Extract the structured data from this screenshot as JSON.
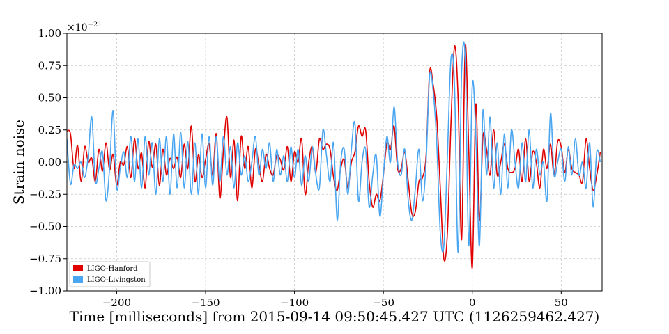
{
  "chart_data": {
    "type": "line",
    "xlabel": "Time [milliseconds] from 2015-09-14 09:50:45.427 UTC (1126259462.427)",
    "ylabel": "Strain noise",
    "y_offset_label": "×10",
    "y_offset_exponent": "−21",
    "xlim": [
      -228,
      73
    ],
    "ylim": [
      -1.0,
      1.0
    ],
    "x_ticks": [
      -200,
      -150,
      -100,
      -50,
      0,
      50
    ],
    "x_tick_labels": [
      "−200",
      "−150",
      "−100",
      "−50",
      "0",
      "50"
    ],
    "y_ticks": [
      -1.0,
      -0.75,
      -0.5,
      -0.25,
      0.0,
      0.25,
      0.5,
      0.75,
      1.0
    ],
    "y_tick_labels": [
      "−1.00",
      "−0.75",
      "−0.50",
      "−0.25",
      "0.00",
      "0.25",
      "0.50",
      "0.75",
      "1.00"
    ],
    "grid": true,
    "legend_position": "bottom-left",
    "series": [
      {
        "name": "LIGO-Hanford",
        "color": "#e00000",
        "points": [
          [
            -228,
            0.24
          ],
          [
            -226,
            0.22
          ],
          [
            -224,
            -0.05
          ],
          [
            -222,
            0.13
          ],
          [
            -220,
            -0.15
          ],
          [
            -218,
            0.12
          ],
          [
            -216,
            0.0
          ],
          [
            -214,
            0.03
          ],
          [
            -212,
            -0.15
          ],
          [
            -210,
            0.1
          ],
          [
            -208,
            -0.07
          ],
          [
            -206,
            0.15
          ],
          [
            -204,
            -0.06
          ],
          [
            -202,
            0.06
          ],
          [
            -200,
            -0.18
          ],
          [
            -198,
            0.0
          ],
          [
            -196,
            -0.02
          ],
          [
            -194,
            0.12
          ],
          [
            -192,
            -0.12
          ],
          [
            -190,
            0.18
          ],
          [
            -188,
            -0.05
          ],
          [
            -186,
            0.07
          ],
          [
            -184,
            -0.2
          ],
          [
            -182,
            0.16
          ],
          [
            -180,
            -0.04
          ],
          [
            -178,
            0.14
          ],
          [
            -176,
            -0.18
          ],
          [
            -174,
            0.1
          ],
          [
            -172,
            -0.1
          ],
          [
            -170,
            0.03
          ],
          [
            -168,
            -0.05
          ],
          [
            -166,
            0.04
          ],
          [
            -164,
            -0.12
          ],
          [
            -162,
            0.14
          ],
          [
            -160,
            -0.05
          ],
          [
            -158,
            0.28
          ],
          [
            -156,
            -0.15
          ],
          [
            -154,
            0.06
          ],
          [
            -152,
            -0.12
          ],
          [
            -150,
            0.02
          ],
          [
            -148,
            0.14
          ],
          [
            -146,
            -0.1
          ],
          [
            -144,
            0.22
          ],
          [
            -142,
            -0.28
          ],
          [
            -140,
            0.08
          ],
          [
            -138,
            0.35
          ],
          [
            -136,
            -0.12
          ],
          [
            -134,
            0.17
          ],
          [
            -132,
            -0.3
          ],
          [
            -130,
            0.2
          ],
          [
            -128,
            -0.05
          ],
          [
            -126,
            0.12
          ],
          [
            -124,
            -0.2
          ],
          [
            -122,
            0.1
          ],
          [
            -120,
            -0.02
          ],
          [
            -118,
            -0.15
          ],
          [
            -116,
            0.06
          ],
          [
            -114,
            -0.05
          ],
          [
            -112,
            -0.1
          ],
          [
            -110,
            0.05
          ],
          [
            -108,
            0.02
          ],
          [
            -106,
            -0.06
          ],
          [
            -104,
            0.12
          ],
          [
            -102,
            -0.15
          ],
          [
            -100,
            0.08
          ],
          [
            -98,
            0.0
          ],
          [
            -96,
            0.18
          ],
          [
            -94,
            -0.25
          ],
          [
            -92,
            0.0
          ],
          [
            -90,
            0.12
          ],
          [
            -88,
            -0.08
          ],
          [
            -86,
            0.18
          ],
          [
            -84,
            0.1
          ],
          [
            -82,
            0.14
          ],
          [
            -80,
            0.1
          ],
          [
            -78,
            -0.12
          ],
          [
            -76,
            -0.22
          ],
          [
            -74,
            -0.05
          ],
          [
            -72,
            0.02
          ],
          [
            -70,
            -0.2
          ],
          [
            -68,
            0.0
          ],
          [
            -66,
            0.08
          ],
          [
            -64,
            0.28
          ],
          [
            -62,
            0.2
          ],
          [
            -60,
            0.25
          ],
          [
            -58,
            -0.15
          ],
          [
            -56,
            -0.35
          ],
          [
            -54,
            -0.25
          ],
          [
            -52,
            -0.3
          ],
          [
            -50,
            -0.1
          ],
          [
            -48,
            0.15
          ],
          [
            -46,
            0.1
          ],
          [
            -44,
            0.28
          ],
          [
            -42,
            -0.05
          ],
          [
            -40,
            -0.05
          ],
          [
            -38,
            0.08
          ],
          [
            -36,
            -0.15
          ],
          [
            -34,
            -0.4
          ],
          [
            -32,
            -0.38
          ],
          [
            -30,
            -0.15
          ],
          [
            -28,
            -0.12
          ],
          [
            -26,
            0.05
          ],
          [
            -24,
            0.7
          ],
          [
            -22,
            0.6
          ],
          [
            -20,
            0.35
          ],
          [
            -18,
            -0.2
          ],
          [
            -16,
            -0.75
          ],
          [
            -14,
            -0.55
          ],
          [
            -12,
            0.3
          ],
          [
            -10,
            0.9
          ],
          [
            -8,
            0.5
          ],
          [
            -6,
            -0.6
          ],
          [
            -4,
            0.9
          ],
          [
            -2,
            0.1
          ],
          [
            0,
            -0.82
          ],
          [
            2,
            0.45
          ],
          [
            4,
            -0.45
          ],
          [
            6,
            0.2
          ],
          [
            8,
            0.1
          ],
          [
            10,
            -0.1
          ],
          [
            12,
            0.25
          ],
          [
            14,
            -0.1
          ],
          [
            16,
            0.0
          ],
          [
            18,
            0.14
          ],
          [
            20,
            -0.05
          ],
          [
            22,
            -0.08
          ],
          [
            24,
            -0.05
          ],
          [
            26,
            0.1
          ],
          [
            28,
            -0.15
          ],
          [
            30,
            0.18
          ],
          [
            32,
            -0.15
          ],
          [
            34,
            0.08
          ],
          [
            36,
            0.0
          ],
          [
            38,
            -0.2
          ],
          [
            40,
            0.1
          ],
          [
            42,
            -0.05
          ],
          [
            44,
            0.14
          ],
          [
            46,
            -0.1
          ],
          [
            48,
            0.16
          ],
          [
            50,
            0.12
          ],
          [
            52,
            -0.08
          ],
          [
            54,
            0.1
          ],
          [
            56,
            -0.05
          ],
          [
            58,
            -0.08
          ],
          [
            60,
            -0.1
          ],
          [
            62,
            -0.15
          ],
          [
            64,
            0.18
          ],
          [
            66,
            -0.05
          ],
          [
            68,
            -0.22
          ],
          [
            70,
            -0.1
          ],
          [
            72,
            0.08
          ]
        ]
      },
      {
        "name": "LIGO-Livingston",
        "color": "#4aa6f0",
        "points": [
          [
            -228,
            0.18
          ],
          [
            -226,
            -0.17
          ],
          [
            -224,
            -0.02
          ],
          [
            -222,
            -0.05
          ],
          [
            -220,
            0.0
          ],
          [
            -218,
            -0.12
          ],
          [
            -216,
            0.05
          ],
          [
            -214,
            0.35
          ],
          [
            -212,
            -0.15
          ],
          [
            -210,
            -0.05
          ],
          [
            -208,
            0.08
          ],
          [
            -206,
            -0.3
          ],
          [
            -204,
            -0.05
          ],
          [
            -202,
            0.4
          ],
          [
            -200,
            -0.2
          ],
          [
            -198,
            -0.05
          ],
          [
            -196,
            0.08
          ],
          [
            -194,
            -0.12
          ],
          [
            -192,
            0.2
          ],
          [
            -190,
            -0.15
          ],
          [
            -188,
            0.18
          ],
          [
            -186,
            -0.2
          ],
          [
            -184,
            0.2
          ],
          [
            -182,
            -0.1
          ],
          [
            -180,
            0.15
          ],
          [
            -178,
            -0.25
          ],
          [
            -176,
            0.18
          ],
          [
            -174,
            -0.15
          ],
          [
            -172,
            0.2
          ],
          [
            -170,
            -0.25
          ],
          [
            -168,
            0.22
          ],
          [
            -166,
            -0.2
          ],
          [
            -164,
            0.23
          ],
          [
            -162,
            -0.2
          ],
          [
            -160,
            0.16
          ],
          [
            -158,
            -0.25
          ],
          [
            -156,
            0.15
          ],
          [
            -154,
            -0.25
          ],
          [
            -152,
            0.22
          ],
          [
            -150,
            -0.2
          ],
          [
            -148,
            0.2
          ],
          [
            -146,
            -0.18
          ],
          [
            -144,
            0.2
          ],
          [
            -142,
            -0.15
          ],
          [
            -140,
            0.2
          ],
          [
            -138,
            -0.1
          ],
          [
            -136,
            0.12
          ],
          [
            -134,
            -0.2
          ],
          [
            -132,
            0.15
          ],
          [
            -130,
            -0.1
          ],
          [
            -128,
            0.05
          ],
          [
            -126,
            -0.15
          ],
          [
            -124,
            0.0
          ],
          [
            -122,
            0.2
          ],
          [
            -120,
            -0.1
          ],
          [
            -118,
            0.1
          ],
          [
            -116,
            -0.05
          ],
          [
            -114,
            0.15
          ],
          [
            -112,
            -0.15
          ],
          [
            -110,
            0.1
          ],
          [
            -108,
            -0.1
          ],
          [
            -106,
            0.05
          ],
          [
            -104,
            -0.15
          ],
          [
            -102,
            0.12
          ],
          [
            -100,
            -0.12
          ],
          [
            -98,
            0.1
          ],
          [
            -96,
            -0.18
          ],
          [
            -94,
            0.05
          ],
          [
            -92,
            -0.15
          ],
          [
            -90,
            0.12
          ],
          [
            -88,
            -0.1
          ],
          [
            -86,
            -0.2
          ],
          [
            -84,
            0.25
          ],
          [
            -82,
            0.05
          ],
          [
            -80,
            -0.15
          ],
          [
            -78,
            0.15
          ],
          [
            -76,
            -0.45
          ],
          [
            -74,
            0.0
          ],
          [
            -72,
            0.1
          ],
          [
            -70,
            -0.25
          ],
          [
            -68,
            0.1
          ],
          [
            -66,
            0.3
          ],
          [
            -64,
            -0.3
          ],
          [
            -62,
            0.0
          ],
          [
            -60,
            0.1
          ],
          [
            -58,
            -0.35
          ],
          [
            -56,
            -0.1
          ],
          [
            -54,
            0.05
          ],
          [
            -52,
            -0.42
          ],
          [
            -50,
            -0.1
          ],
          [
            -48,
            0.2
          ],
          [
            -46,
            0.0
          ],
          [
            -44,
            0.43
          ],
          [
            -42,
            0.0
          ],
          [
            -40,
            -0.1
          ],
          [
            -38,
            0.1
          ],
          [
            -36,
            -0.3
          ],
          [
            -34,
            -0.45
          ],
          [
            -32,
            -0.2
          ],
          [
            -30,
            0.1
          ],
          [
            -28,
            -0.3
          ],
          [
            -26,
            0.0
          ],
          [
            -24,
            0.67
          ],
          [
            -22,
            0.55
          ],
          [
            -20,
            0.15
          ],
          [
            -18,
            -0.55
          ],
          [
            -16,
            -0.65
          ],
          [
            -14,
            0.05
          ],
          [
            -12,
            0.8
          ],
          [
            -10,
            0.6
          ],
          [
            -8,
            -0.7
          ],
          [
            -6,
            0.7
          ],
          [
            -4,
            0.8
          ],
          [
            -2,
            -0.65
          ],
          [
            0,
            0.6
          ],
          [
            2,
            0.2
          ],
          [
            4,
            -0.65
          ],
          [
            6,
            0.4
          ],
          [
            8,
            -0.1
          ],
          [
            10,
            0.35
          ],
          [
            12,
            -0.2
          ],
          [
            14,
            0.15
          ],
          [
            16,
            -0.25
          ],
          [
            18,
            0.22
          ],
          [
            20,
            -0.2
          ],
          [
            22,
            0.25
          ],
          [
            24,
            0.0
          ],
          [
            26,
            -0.2
          ],
          [
            28,
            0.15
          ],
          [
            30,
            -0.15
          ],
          [
            32,
            0.25
          ],
          [
            34,
            -0.2
          ],
          [
            36,
            0.1
          ],
          [
            38,
            -0.1
          ],
          [
            40,
            0.0
          ],
          [
            42,
            -0.3
          ],
          [
            44,
            0.38
          ],
          [
            46,
            -0.1
          ],
          [
            48,
            0.0
          ],
          [
            50,
            0.1
          ],
          [
            52,
            -0.15
          ],
          [
            54,
            0.12
          ],
          [
            56,
            -0.1
          ],
          [
            58,
            0.18
          ],
          [
            60,
            -0.1
          ],
          [
            62,
            0.0
          ],
          [
            64,
            -0.2
          ],
          [
            66,
            0.15
          ],
          [
            68,
            -0.35
          ],
          [
            70,
            0.08
          ],
          [
            72,
            0.0
          ]
        ]
      }
    ]
  }
}
